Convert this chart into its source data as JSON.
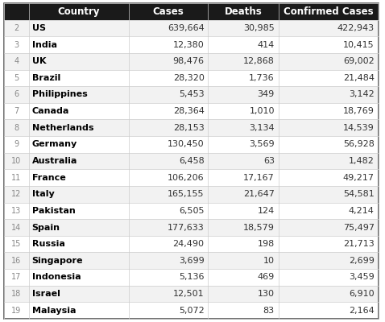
{
  "columns": [
    "Country",
    "Cases",
    "Deaths",
    "Confirmed Cases"
  ],
  "rows": [
    [
      "US",
      639664,
      30985,
      422943
    ],
    [
      "India",
      12380,
      414,
      10415
    ],
    [
      "UK",
      98476,
      12868,
      69002
    ],
    [
      "Brazil",
      28320,
      1736,
      21484
    ],
    [
      "Philippines",
      5453,
      349,
      3142
    ],
    [
      "Canada",
      28364,
      1010,
      18769
    ],
    [
      "Netherlands",
      28153,
      3134,
      14539
    ],
    [
      "Germany",
      130450,
      3569,
      56928
    ],
    [
      "Australia",
      6458,
      63,
      1482
    ],
    [
      "France",
      106206,
      17167,
      49217
    ],
    [
      "Italy",
      165155,
      21647,
      54581
    ],
    [
      "Pakistan",
      6505,
      124,
      4214
    ],
    [
      "Spain",
      177633,
      18579,
      75497
    ],
    [
      "Russia",
      24490,
      198,
      21713
    ],
    [
      "Singapore",
      3699,
      10,
      2699
    ],
    [
      "Indonesia",
      5136,
      469,
      3459
    ],
    [
      "Israel",
      12501,
      130,
      6910
    ],
    [
      "Malaysia",
      5072,
      83,
      2164
    ]
  ],
  "header_bg": "#1a1a1a",
  "header_fg": "#ffffff",
  "row_bg_odd": "#f2f2f2",
  "row_bg_even": "#ffffff",
  "border_color": "#cccccc",
  "row_number_fg": "#888888",
  "country_fg": "#000000",
  "data_fg": "#333333",
  "font_size": 8.0,
  "header_font_size": 8.5
}
